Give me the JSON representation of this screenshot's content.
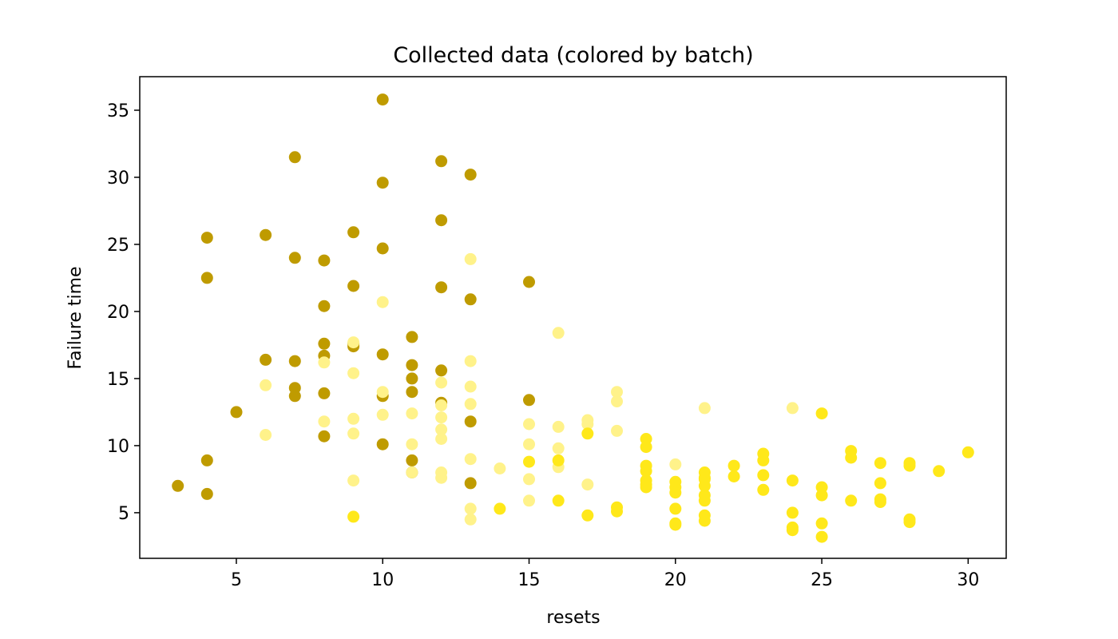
{
  "chart_data": {
    "type": "scatter",
    "title": "Collected data (colored by batch)",
    "xlabel": "resets",
    "ylabel": "Failure time",
    "xlim": [
      1.7,
      31.3
    ],
    "ylim": [
      1.6,
      37.5
    ],
    "xticks": [
      5,
      10,
      15,
      20,
      25,
      30
    ],
    "yticks": [
      5,
      10,
      15,
      20,
      25,
      30,
      35
    ],
    "grid": false,
    "series": [
      {
        "color": "#bf9b00",
        "x": [
          3,
          4,
          4,
          4,
          4,
          5,
          6,
          6,
          7,
          7,
          7,
          7,
          7,
          8,
          8,
          8,
          8,
          8,
          8,
          9,
          9,
          9,
          9,
          10,
          10,
          10,
          10,
          10,
          10,
          11,
          11,
          11,
          11,
          11,
          11,
          12,
          12,
          12,
          12,
          12,
          13,
          13,
          13,
          13,
          15,
          15
        ],
        "y": [
          7.0,
          6.4,
          8.9,
          22.5,
          25.5,
          12.5,
          25.7,
          16.4,
          31.5,
          24.0,
          16.3,
          14.3,
          13.7,
          23.8,
          20.4,
          17.6,
          16.7,
          13.9,
          10.7,
          25.9,
          21.9,
          17.4,
          17.6,
          35.8,
          29.6,
          24.7,
          16.8,
          13.7,
          10.1,
          18.1,
          16.0,
          15.0,
          14.0,
          8.9,
          8.0,
          31.2,
          26.8,
          21.8,
          15.6,
          13.2,
          30.2,
          20.9,
          11.8,
          7.2,
          22.2,
          13.4
        ]
      },
      {
        "color": "#fff28a",
        "x": [
          6,
          6,
          8,
          8,
          9,
          9,
          9,
          9,
          9,
          10,
          10,
          10,
          11,
          11,
          11,
          12,
          12,
          12,
          12,
          12,
          12,
          12,
          13,
          13,
          13,
          13,
          13,
          13,
          13,
          14,
          15,
          15,
          15,
          15,
          16,
          16,
          16,
          16,
          17,
          17,
          17,
          18,
          18,
          18,
          20,
          21,
          24
        ],
        "y": [
          14.5,
          10.8,
          16.2,
          11.8,
          17.7,
          15.4,
          12.0,
          10.9,
          7.4,
          20.7,
          14.0,
          12.3,
          12.4,
          10.1,
          8.0,
          14.7,
          13.0,
          12.1,
          11.2,
          10.5,
          8.0,
          7.6,
          23.9,
          16.3,
          14.4,
          13.1,
          9.0,
          5.3,
          4.5,
          8.3,
          11.6,
          10.1,
          7.5,
          5.9,
          18.4,
          11.4,
          9.8,
          8.4,
          11.9,
          11.6,
          7.1,
          14.0,
          13.3,
          11.1,
          8.6,
          12.8,
          12.8
        ]
      },
      {
        "color": "#ffe81a",
        "x": [
          9,
          14,
          15,
          16,
          16,
          17,
          17,
          18,
          18,
          19,
          19,
          19,
          19,
          19,
          19,
          19,
          20,
          20,
          20,
          20,
          20,
          20,
          21,
          21,
          21,
          21,
          21,
          21,
          21,
          21,
          22,
          22,
          23,
          23,
          23,
          23,
          24,
          24,
          24,
          24,
          25,
          25,
          25,
          25,
          25,
          26,
          26,
          26,
          27,
          27,
          27,
          27,
          28,
          28,
          28,
          28,
          29,
          30
        ],
        "y": [
          4.7,
          5.3,
          8.8,
          8.9,
          5.9,
          10.9,
          4.8,
          5.4,
          5.1,
          10.5,
          9.9,
          8.5,
          8.1,
          7.4,
          7.1,
          6.9,
          7.3,
          6.9,
          6.5,
          5.3,
          4.2,
          4.1,
          8.0,
          7.6,
          7.0,
          6.3,
          5.9,
          4.8,
          4.4,
          7.5,
          8.5,
          7.7,
          9.4,
          8.9,
          7.8,
          6.7,
          7.4,
          5.0,
          3.9,
          3.7,
          12.4,
          6.9,
          6.3,
          4.2,
          3.2,
          9.6,
          9.1,
          5.9,
          8.7,
          7.2,
          6.0,
          5.8,
          8.7,
          8.5,
          4.5,
          4.3,
          8.1,
          9.5
        ]
      }
    ]
  }
}
